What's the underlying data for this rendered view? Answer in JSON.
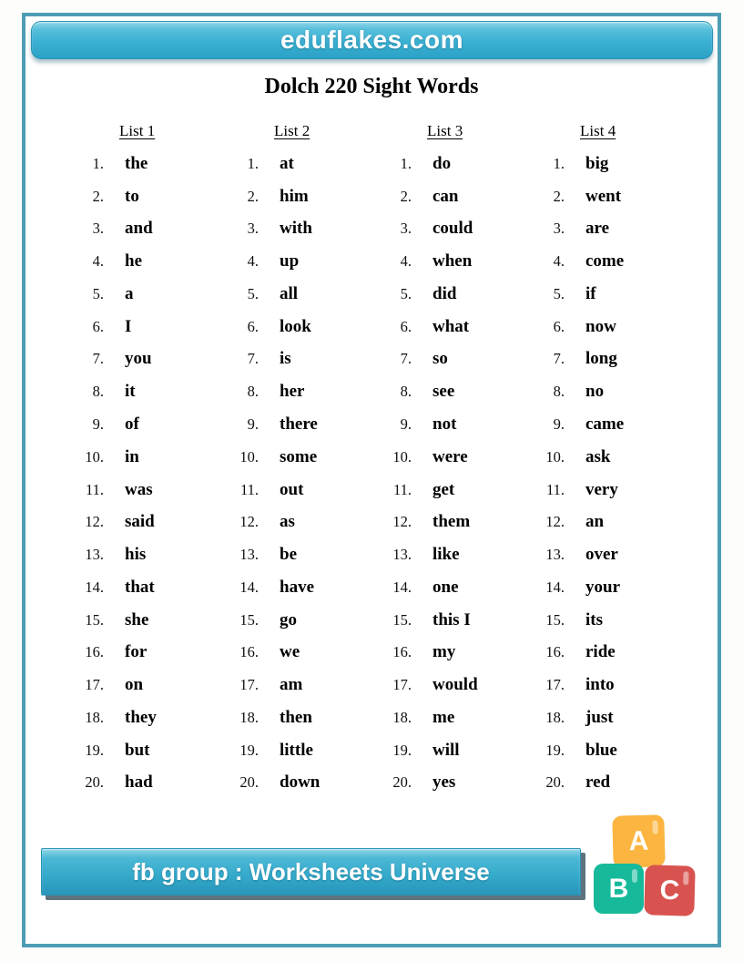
{
  "header": {
    "site_name": "eduflakes.com"
  },
  "title": "Dolch 220 Sight Words",
  "lists": [
    {
      "label": "List 1",
      "words": [
        "the",
        "to",
        "and",
        "he",
        "a",
        "I",
        "you",
        "it",
        "of",
        "in",
        "was",
        "said",
        "his",
        "that",
        "she",
        "for",
        "on",
        "they",
        "but",
        "had"
      ]
    },
    {
      "label": "List 2",
      "words": [
        "at",
        "him",
        "with",
        "up",
        "all",
        "look",
        "is",
        "her",
        "there",
        "some",
        "out",
        "as",
        "be",
        "have",
        "go",
        "we",
        "am",
        "then",
        "little",
        "down"
      ]
    },
    {
      "label": "List 3",
      "words": [
        "do",
        "can",
        "could",
        "when",
        "did",
        "what",
        "so",
        "see",
        "not",
        "were",
        "get",
        "them",
        "like",
        "one",
        "this I",
        "my",
        "would",
        "me",
        "will",
        "yes"
      ]
    },
    {
      "label": "List 4",
      "words": [
        "big",
        "went",
        "are",
        "come",
        "if",
        "now",
        "long",
        "no",
        "came",
        "ask",
        "very",
        "an",
        "over",
        "your",
        "its",
        "ride",
        "into",
        "just",
        "blue",
        "red"
      ]
    }
  ],
  "footer": {
    "banner_text": "fb group : Worksheets Universe",
    "blocks": [
      {
        "letter": "A",
        "color": "#FBB540"
      },
      {
        "letter": "B",
        "color": "#17B99B"
      },
      {
        "letter": "C",
        "color": "#D8534F"
      }
    ]
  },
  "colors": {
    "banner_teal": "#34A9CA",
    "page_border": "#4D9DB4",
    "footer_shadow": "#5D737E",
    "banner_text": "#FFFFFF",
    "body_text": "#000000"
  }
}
